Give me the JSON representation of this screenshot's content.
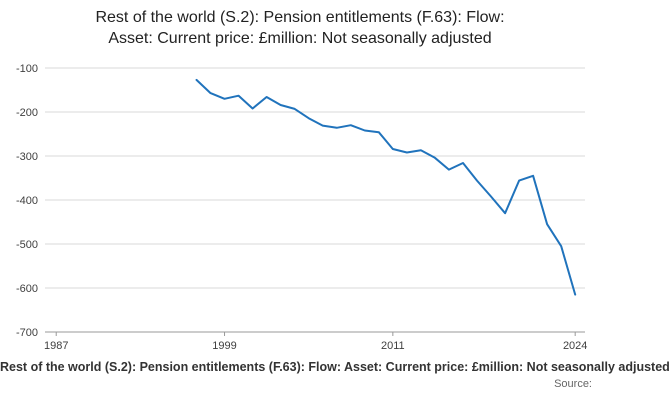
{
  "title": {
    "line1": "Rest of the world (S.2): Pension entitlements (F.63): Flow:",
    "line2": "Asset: Current price: £million: Not seasonally adjusted"
  },
  "footer": {
    "text": "Rest of the world (S.2): Pension entitlements (F.63): Flow: Asset: Current price: £million: Not seasonally adjusted",
    "source_label": "Source:"
  },
  "chart_data": {
    "type": "line",
    "title": "Rest of the world (S.2): Pension entitlements (F.63): Flow: Asset: Current price: £million: Not seasonally adjusted",
    "xlabel": "",
    "ylabel": "",
    "x": [
      1997,
      1998,
      1999,
      2000,
      2001,
      2002,
      2003,
      2004,
      2005,
      2006,
      2007,
      2008,
      2009,
      2010,
      2011,
      2012,
      2013,
      2014,
      2015,
      2016,
      2017,
      2018,
      2019,
      2020,
      2021,
      2022,
      2023,
      2024
    ],
    "values": [
      -127,
      -157,
      -170,
      -163,
      -192,
      -166,
      -184,
      -193,
      -214,
      -231,
      -236,
      -230,
      -242,
      -246,
      -284,
      -292,
      -287,
      -304,
      -331,
      -316,
      -356,
      -392,
      -430,
      -356,
      -345,
      -455,
      -505,
      -615
    ],
    "x_ticks": [
      1987,
      1999,
      2011,
      2024
    ],
    "y_ticks": [
      -100,
      -200,
      -300,
      -400,
      -500,
      -600,
      -700
    ],
    "xlim": [
      1986.2,
      2024.7
    ],
    "ylim": [
      -700,
      -100
    ],
    "grid": true,
    "legend": "none",
    "line_color": "#2073bc",
    "grid_color": "#d9d9d9",
    "axis_color": "#999999",
    "tick_label_color": "#404040"
  }
}
